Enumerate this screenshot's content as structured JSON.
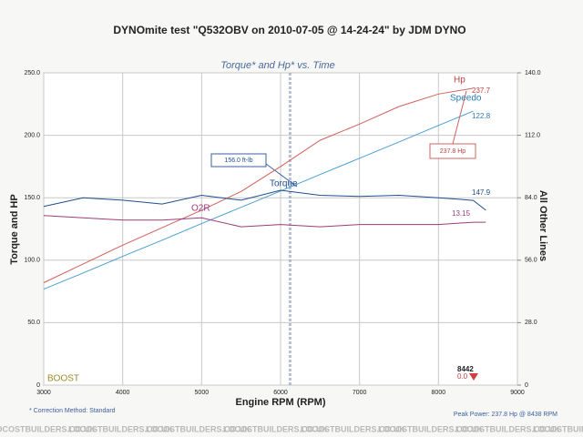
{
  "chart_data": {
    "type": "line",
    "title": "DYNOmite test \"Q532OBV on 2010-07-05 @ 14-24-24\" by JDM DYNO",
    "subtitle": "Torque* and Hp* vs. Time",
    "x_label": "Engine RPM (RPM)",
    "y_label": "Torque and HP",
    "y2_label": "All Other Lines",
    "x": [
      3000,
      3500,
      4000,
      4500,
      5000,
      5500,
      6000,
      6500,
      7000,
      7500,
      8000,
      8440,
      8600
    ],
    "xlim": [
      3000,
      9000
    ],
    "xticks": [
      3000,
      4000,
      5000,
      6000,
      7000,
      8000,
      9000
    ],
    "ylim": [
      0,
      250
    ],
    "yticks": [
      0,
      {
        "value": 50,
        "label": "50.0"
      },
      {
        "value": 100,
        "label": "100.0"
      },
      {
        "value": 150,
        "label": "150.0"
      },
      {
        "value": 200,
        "label": "200.0"
      },
      {
        "value": 250,
        "label": "250.0"
      }
    ],
    "y2lim": [
      0,
      140
    ],
    "y2ticks": [
      0,
      {
        "value": 28,
        "label": "28.0"
      },
      {
        "value": 56,
        "label": "56.0"
      },
      {
        "value": 84,
        "label": "84.0"
      },
      {
        "value": 112,
        "label": "112.0"
      },
      {
        "value": 140,
        "label": "140.0"
      }
    ],
    "grid": true,
    "cursor_x": 6120,
    "series": [
      {
        "name": "Hp",
        "color": "#d0605c",
        "values": [
          82,
          97,
          112,
          126,
          140,
          155,
          175,
          196,
          209,
          223,
          233,
          237.7,
          null
        ]
      },
      {
        "name": "Speedo",
        "color": "#4a9fcf",
        "axis": "y2",
        "values": [
          43,
          50.3,
          57.7,
          65,
          72.4,
          79.7,
          87,
          94.4,
          101.7,
          109,
          116.4,
          122.8,
          null
        ]
      },
      {
        "name": "Torque",
        "color": "#1f4e8c",
        "values": [
          143,
          150,
          148,
          145,
          152,
          148,
          156,
          152,
          151,
          152,
          150,
          147.9,
          140
        ]
      },
      {
        "name": "O2R",
        "color": "#9b3c7a",
        "axis": "y2",
        "values": [
          76,
          75,
          74,
          74,
          75,
          71,
          72,
          71,
          72,
          72,
          72,
          73,
          73
        ]
      }
    ],
    "annotations": {
      "torque_box": "156.0 ft-lb",
      "hp_box": "237.8 Hp",
      "hp_end": "237.7",
      "speedo_end": "122.8",
      "torque_end": "147.9",
      "o2r_end": "13.15",
      "boost": "BOOST",
      "rpm_readout": "8442",
      "boost_readout": "0.0",
      "correction": "* Correction Method: Standard",
      "peak": "Peak Power: 237.8 Hp @ 8438 RPM"
    },
    "watermark": "LOCOSTBUILDERS.CO.UK"
  }
}
